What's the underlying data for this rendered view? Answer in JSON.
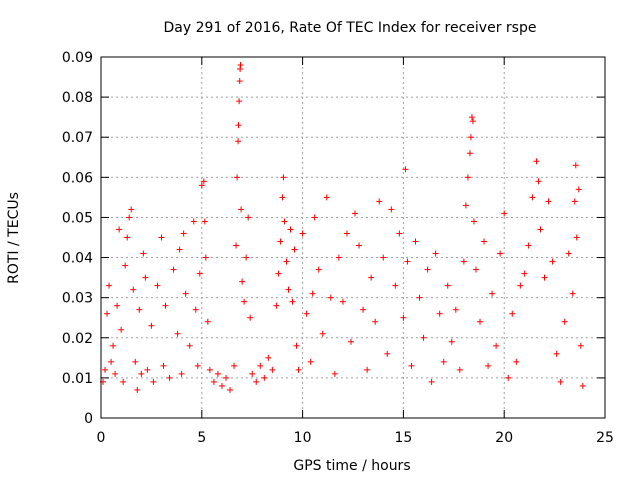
{
  "chart_data": {
    "type": "scatter",
    "title": "Day 291 of 2016, Rate Of TEC Index for receiver rspe",
    "xlabel": "GPS time / hours",
    "ylabel": "ROTI / TECUs",
    "xlim": [
      0,
      25
    ],
    "ylim": [
      0,
      0.09
    ],
    "x_ticks": [
      0,
      5,
      10,
      15,
      20,
      25
    ],
    "x_tick_labels": [
      "0",
      "5",
      "10",
      "15",
      "20",
      "25"
    ],
    "y_ticks": [
      0,
      0.01,
      0.02,
      0.03,
      0.04,
      0.05,
      0.06,
      0.07,
      0.08,
      0.09
    ],
    "y_tick_labels": [
      "0",
      "0.01",
      "0.02",
      "0.03",
      "0.04",
      "0.05",
      "0.06",
      "0.07",
      "0.08",
      "0.09"
    ],
    "grid": true,
    "marker": "plus",
    "color": "#ff0000",
    "series": [
      {
        "name": "ROTI",
        "points": [
          [
            0.1,
            0.009
          ],
          [
            0.2,
            0.012
          ],
          [
            0.3,
            0.026
          ],
          [
            0.4,
            0.033
          ],
          [
            0.5,
            0.014
          ],
          [
            0.6,
            0.018
          ],
          [
            0.7,
            0.011
          ],
          [
            0.8,
            0.028
          ],
          [
            0.9,
            0.047
          ],
          [
            1.0,
            0.022
          ],
          [
            1.1,
            0.009
          ],
          [
            1.2,
            0.038
          ],
          [
            1.3,
            0.045
          ],
          [
            1.4,
            0.05
          ],
          [
            1.5,
            0.052
          ],
          [
            1.6,
            0.032
          ],
          [
            1.7,
            0.014
          ],
          [
            1.8,
            0.007
          ],
          [
            1.9,
            0.027
          ],
          [
            2.0,
            0.011
          ],
          [
            2.1,
            0.041
          ],
          [
            2.2,
            0.035
          ],
          [
            2.3,
            0.012
          ],
          [
            2.5,
            0.023
          ],
          [
            2.6,
            0.009
          ],
          [
            2.8,
            0.033
          ],
          [
            3.0,
            0.045
          ],
          [
            3.1,
            0.013
          ],
          [
            3.2,
            0.028
          ],
          [
            3.4,
            0.01
          ],
          [
            3.6,
            0.037
          ],
          [
            3.8,
            0.021
          ],
          [
            3.9,
            0.042
          ],
          [
            4.0,
            0.011
          ],
          [
            4.1,
            0.046
          ],
          [
            4.2,
            0.031
          ],
          [
            4.4,
            0.018
          ],
          [
            4.6,
            0.049
          ],
          [
            4.7,
            0.027
          ],
          [
            4.8,
            0.013
          ],
          [
            4.9,
            0.036
          ],
          [
            5.0,
            0.058
          ],
          [
            5.1,
            0.059
          ],
          [
            5.15,
            0.049
          ],
          [
            5.2,
            0.04
          ],
          [
            5.3,
            0.024
          ],
          [
            5.4,
            0.012
          ],
          [
            5.6,
            0.009
          ],
          [
            5.8,
            0.011
          ],
          [
            6.0,
            0.008
          ],
          [
            6.2,
            0.01
          ],
          [
            6.4,
            0.007
          ],
          [
            6.6,
            0.013
          ],
          [
            6.7,
            0.043
          ],
          [
            6.75,
            0.06
          ],
          [
            6.8,
            0.069
          ],
          [
            6.82,
            0.073
          ],
          [
            6.85,
            0.079
          ],
          [
            6.88,
            0.084
          ],
          [
            6.9,
            0.087
          ],
          [
            6.92,
            0.088
          ],
          [
            6.95,
            0.052
          ],
          [
            7.0,
            0.034
          ],
          [
            7.1,
            0.029
          ],
          [
            7.2,
            0.04
          ],
          [
            7.3,
            0.05
          ],
          [
            7.4,
            0.025
          ],
          [
            7.5,
            0.011
          ],
          [
            7.7,
            0.009
          ],
          [
            7.9,
            0.013
          ],
          [
            8.1,
            0.01
          ],
          [
            8.3,
            0.015
          ],
          [
            8.5,
            0.012
          ],
          [
            8.7,
            0.028
          ],
          [
            8.8,
            0.036
          ],
          [
            8.9,
            0.044
          ],
          [
            9.0,
            0.055
          ],
          [
            9.05,
            0.06
          ],
          [
            9.1,
            0.049
          ],
          [
            9.2,
            0.039
          ],
          [
            9.3,
            0.032
          ],
          [
            9.4,
            0.047
          ],
          [
            9.5,
            0.029
          ],
          [
            9.6,
            0.042
          ],
          [
            9.7,
            0.018
          ],
          [
            9.8,
            0.012
          ],
          [
            10.0,
            0.046
          ],
          [
            10.2,
            0.026
          ],
          [
            10.4,
            0.014
          ],
          [
            10.5,
            0.031
          ],
          [
            10.6,
            0.05
          ],
          [
            10.8,
            0.037
          ],
          [
            11.0,
            0.021
          ],
          [
            11.2,
            0.055
          ],
          [
            11.4,
            0.03
          ],
          [
            11.6,
            0.011
          ],
          [
            11.8,
            0.04
          ],
          [
            12.0,
            0.029
          ],
          [
            12.2,
            0.046
          ],
          [
            12.4,
            0.019
          ],
          [
            12.6,
            0.051
          ],
          [
            12.8,
            0.043
          ],
          [
            13.0,
            0.027
          ],
          [
            13.2,
            0.012
          ],
          [
            13.4,
            0.035
          ],
          [
            13.6,
            0.024
          ],
          [
            13.8,
            0.054
          ],
          [
            14.0,
            0.04
          ],
          [
            14.2,
            0.016
          ],
          [
            14.4,
            0.052
          ],
          [
            14.6,
            0.033
          ],
          [
            14.8,
            0.046
          ],
          [
            15.0,
            0.025
          ],
          [
            15.1,
            0.062
          ],
          [
            15.2,
            0.039
          ],
          [
            15.4,
            0.013
          ],
          [
            15.6,
            0.044
          ],
          [
            15.8,
            0.03
          ],
          [
            16.0,
            0.02
          ],
          [
            16.2,
            0.037
          ],
          [
            16.4,
            0.009
          ],
          [
            16.6,
            0.041
          ],
          [
            16.8,
            0.026
          ],
          [
            17.0,
            0.014
          ],
          [
            17.2,
            0.033
          ],
          [
            17.4,
            0.019
          ],
          [
            17.6,
            0.027
          ],
          [
            17.8,
            0.012
          ],
          [
            18.0,
            0.039
          ],
          [
            18.1,
            0.053
          ],
          [
            18.2,
            0.06
          ],
          [
            18.3,
            0.066
          ],
          [
            18.35,
            0.07
          ],
          [
            18.4,
            0.075
          ],
          [
            18.45,
            0.074
          ],
          [
            18.5,
            0.049
          ],
          [
            18.6,
            0.037
          ],
          [
            18.8,
            0.024
          ],
          [
            19.0,
            0.044
          ],
          [
            19.2,
            0.013
          ],
          [
            19.4,
            0.031
          ],
          [
            19.6,
            0.018
          ],
          [
            19.8,
            0.041
          ],
          [
            20.0,
            0.051
          ],
          [
            20.2,
            0.01
          ],
          [
            20.4,
            0.026
          ],
          [
            20.6,
            0.014
          ],
          [
            20.8,
            0.033
          ],
          [
            21.0,
            0.036
          ],
          [
            21.2,
            0.043
          ],
          [
            21.4,
            0.055
          ],
          [
            21.6,
            0.064
          ],
          [
            21.7,
            0.059
          ],
          [
            21.8,
            0.047
          ],
          [
            22.0,
            0.035
          ],
          [
            22.2,
            0.054
          ],
          [
            22.4,
            0.039
          ],
          [
            22.6,
            0.016
          ],
          [
            22.8,
            0.009
          ],
          [
            23.0,
            0.024
          ],
          [
            23.2,
            0.041
          ],
          [
            23.4,
            0.031
          ],
          [
            23.5,
            0.054
          ],
          [
            23.55,
            0.063
          ],
          [
            23.6,
            0.045
          ],
          [
            23.7,
            0.057
          ],
          [
            23.8,
            0.018
          ],
          [
            23.9,
            0.008
          ]
        ]
      }
    ]
  }
}
